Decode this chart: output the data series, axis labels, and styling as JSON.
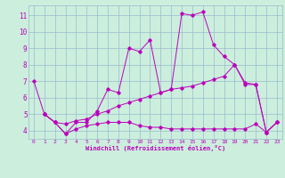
{
  "bg_color": "#cceedd",
  "line_color": "#bb00bb",
  "grid_color": "#99bbcc",
  "xlabel": "Windchill (Refroidissement éolien,°C)",
  "ylim": [
    3.5,
    11.6
  ],
  "xlim": [
    -0.5,
    23.5
  ],
  "yticks": [
    4,
    5,
    6,
    7,
    8,
    9,
    10,
    11
  ],
  "xticks": [
    0,
    1,
    2,
    3,
    4,
    5,
    6,
    7,
    8,
    9,
    10,
    11,
    12,
    13,
    14,
    15,
    16,
    17,
    18,
    19,
    20,
    21,
    22,
    23
  ],
  "lines": [
    {
      "x": [
        0,
        1,
        2,
        3,
        4,
        5,
        6,
        7,
        8,
        9,
        10,
        11,
        12,
        13,
        14,
        15,
        16,
        17,
        18,
        19,
        20,
        21,
        22,
        23
      ],
      "y": [
        7.0,
        5.0,
        4.5,
        3.8,
        4.5,
        4.5,
        5.2,
        6.5,
        6.3,
        9.0,
        8.8,
        9.5,
        6.3,
        6.5,
        11.1,
        11.0,
        11.2,
        9.2,
        8.5,
        8.0,
        6.8,
        6.8,
        3.9,
        4.5
      ]
    },
    {
      "x": [
        1,
        2,
        3,
        4,
        5,
        6,
        7,
        8,
        9,
        10,
        11,
        12,
        13,
        14,
        15,
        16,
        17,
        18,
        19,
        20,
        21,
        22,
        23
      ],
      "y": [
        5.0,
        4.5,
        4.4,
        4.6,
        4.7,
        5.0,
        5.2,
        5.5,
        5.7,
        5.9,
        6.1,
        6.3,
        6.5,
        6.6,
        6.7,
        6.9,
        7.1,
        7.3,
        8.0,
        6.9,
        6.8,
        3.9,
        4.5
      ]
    },
    {
      "x": [
        1,
        2,
        3,
        4,
        5,
        6,
        7,
        8,
        9,
        10,
        11,
        12,
        13,
        14,
        15,
        16,
        17,
        18,
        19,
        20,
        21,
        22,
        23
      ],
      "y": [
        5.0,
        4.5,
        3.8,
        4.1,
        4.3,
        4.4,
        4.5,
        4.5,
        4.5,
        4.3,
        4.2,
        4.2,
        4.1,
        4.1,
        4.1,
        4.1,
        4.1,
        4.1,
        4.1,
        4.1,
        4.4,
        3.9,
        4.5
      ]
    }
  ]
}
